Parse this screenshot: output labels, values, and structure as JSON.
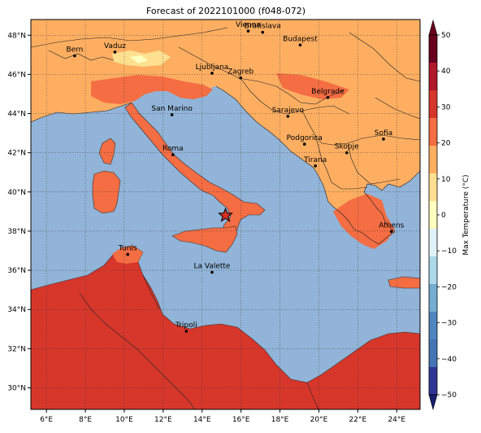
{
  "title": "Forecast of 2022101000 (f048-072)",
  "map": {
    "lon_range": [
      5.2,
      25.2
    ],
    "lat_range": [
      28.9,
      48.8
    ],
    "x_ticks": [
      {
        "value": 6,
        "label": "6°E"
      },
      {
        "value": 8,
        "label": "8°E"
      },
      {
        "value": 10,
        "label": "10°E"
      },
      {
        "value": 12,
        "label": "12°E"
      },
      {
        "value": 14,
        "label": "14°E"
      },
      {
        "value": 16,
        "label": "16°E"
      },
      {
        "value": 18,
        "label": "18°E"
      },
      {
        "value": 20,
        "label": "20°E"
      },
      {
        "value": 22,
        "label": "22°E"
      },
      {
        "value": 24,
        "label": "24°E"
      }
    ],
    "y_ticks": [
      {
        "value": 30,
        "label": "30°N"
      },
      {
        "value": 32,
        "label": "32°N"
      },
      {
        "value": 34,
        "label": "34°N"
      },
      {
        "value": 36,
        "label": "36°N"
      },
      {
        "value": 38,
        "label": "38°N"
      },
      {
        "value": 40,
        "label": "40°N"
      },
      {
        "value": 42,
        "label": "42°N"
      },
      {
        "value": 44,
        "label": "44°N"
      },
      {
        "value": 46,
        "label": "46°N"
      },
      {
        "value": 48,
        "label": "48°N"
      }
    ],
    "grid": "dotted",
    "sea_color": "#91b4d8",
    "star_marker": {
      "lon": 15.2,
      "lat": 38.8,
      "color": "#d73027"
    }
  },
  "cities": [
    {
      "name": "Bern",
      "lon": 7.45,
      "lat": 46.95
    },
    {
      "name": "Vaduz",
      "lon": 9.52,
      "lat": 47.14
    },
    {
      "name": "Vienna",
      "lon": 16.37,
      "lat": 48.21
    },
    {
      "name": "Bratislava",
      "lon": 17.11,
      "lat": 48.15
    },
    {
      "name": "Budapest",
      "lon": 19.04,
      "lat": 47.5
    },
    {
      "name": "Ljubljana",
      "lon": 14.51,
      "lat": 46.06
    },
    {
      "name": "Zagreb",
      "lon": 15.98,
      "lat": 45.82
    },
    {
      "name": "Belgrade",
      "lon": 20.46,
      "lat": 44.82
    },
    {
      "name": "San Marino",
      "lon": 12.45,
      "lat": 43.94
    },
    {
      "name": "Sarajevo",
      "lon": 18.41,
      "lat": 43.86
    },
    {
      "name": "Sofia",
      "lon": 23.32,
      "lat": 42.7
    },
    {
      "name": "Podgorica",
      "lon": 19.26,
      "lat": 42.44
    },
    {
      "name": "Skopje",
      "lon": 21.43,
      "lat": 42.0
    },
    {
      "name": "Roma",
      "lon": 12.5,
      "lat": 41.9
    },
    {
      "name": "Tirana",
      "lon": 19.82,
      "lat": 41.33
    },
    {
      "name": "Athens",
      "lon": 23.73,
      "lat": 37.98
    },
    {
      "name": "Tunis",
      "lon": 10.18,
      "lat": 36.81
    },
    {
      "name": "La Valette",
      "lon": 14.51,
      "lat": 35.9
    },
    {
      "name": "Tripoli",
      "lon": 13.19,
      "lat": 32.89
    }
  ],
  "colorbar": {
    "label": "Max Temperature (°C)",
    "ticks": [
      "50",
      "40",
      "30",
      "20",
      "10",
      "0",
      "−10",
      "−20",
      "−30",
      "−40",
      "−50"
    ],
    "bands": [
      "#67001f",
      "#b2182b",
      "#d6372a",
      "#f46d43",
      "#fdae61",
      "#fee090",
      "#ffffbf",
      "#e0f3f8",
      "#abd9e9",
      "#74add1",
      "#4f86c0",
      "#4575b4",
      "#313695"
    ],
    "over_color": "#67001f",
    "under_color": "#1a1f6e"
  },
  "temperature_colors": {
    "warm_20_30": "#fdae61",
    "hot_30_40": "#f46d43",
    "very_hot": "#d6372a",
    "mild_10_20": "#fee090",
    "cool": "#ffffbf"
  }
}
